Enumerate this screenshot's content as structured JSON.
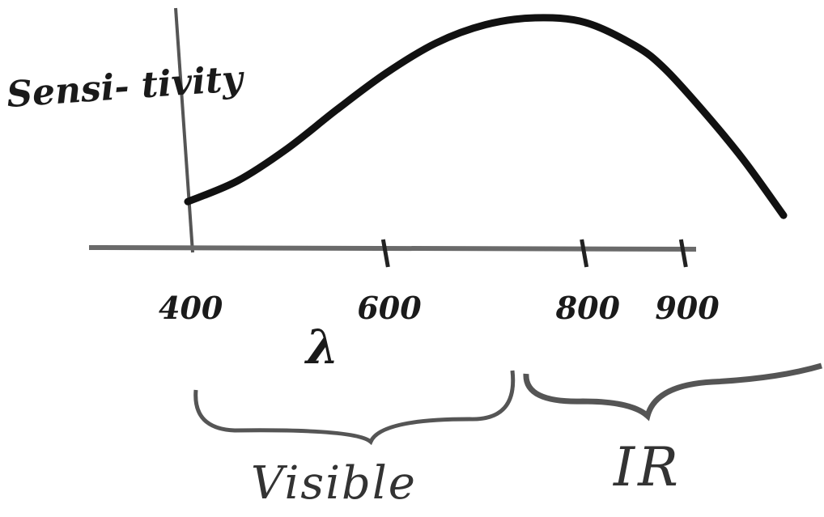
{
  "chart_data": {
    "type": "line",
    "title": "",
    "ylabel": "Sensi- tivity",
    "xlabel": "λ",
    "xlim": [
      400,
      1000
    ],
    "ylim": [
      0,
      1
    ],
    "x_ticks": [
      {
        "value": 400,
        "label": "400"
      },
      {
        "value": 600,
        "label": "600"
      },
      {
        "value": 800,
        "label": "800"
      },
      {
        "value": 900,
        "label": "900"
      }
    ],
    "series": [
      {
        "x": [
          400,
          450,
          500,
          550,
          600,
          650,
          700,
          750,
          800,
          850,
          880,
          920,
          960,
          1000
        ],
        "y": [
          0.2,
          0.29,
          0.43,
          0.6,
          0.76,
          0.89,
          0.97,
          1.0,
          0.98,
          0.88,
          0.78,
          0.59,
          0.38,
          0.14
        ]
      }
    ],
    "regions": [
      {
        "label": "Visible",
        "from": 400,
        "to": 765
      },
      {
        "label": "IR",
        "from": 775,
        "to": 1000
      }
    ],
    "grid": false,
    "legend": "none"
  }
}
